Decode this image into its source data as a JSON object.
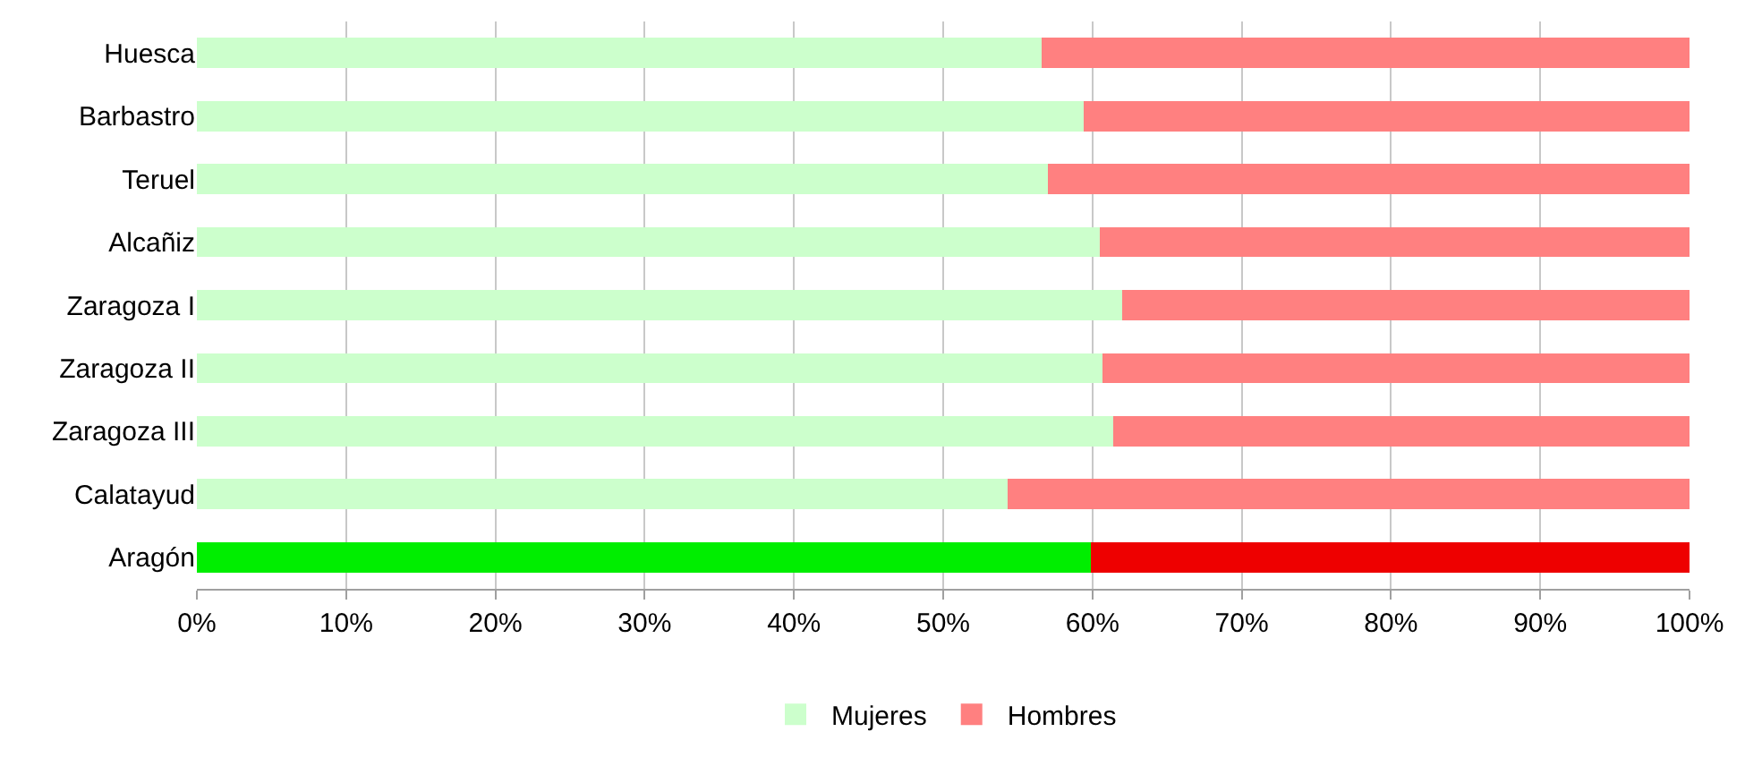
{
  "chart_data": {
    "type": "bar",
    "orientation": "horizontal",
    "stacked": true,
    "categories": [
      "Huesca",
      "Barbastro",
      "Teruel",
      "Alcañiz",
      "Zaragoza I",
      "Zaragoza II",
      "Zaragoza III",
      "Calatayud",
      "Aragón"
    ],
    "series": [
      {
        "name": "Mujeres",
        "color": "#ccffcc",
        "colors": [
          "#ccffcc",
          "#ccffcc",
          "#ccffcc",
          "#ccffcc",
          "#ccffcc",
          "#ccffcc",
          "#ccffcc",
          "#ccffcc",
          "#00ee00"
        ],
        "values": [
          56.6,
          59.4,
          57.0,
          60.5,
          62.0,
          60.7,
          61.4,
          54.3,
          59.9
        ]
      },
      {
        "name": "Hombres",
        "color": "#ff8080",
        "colors": [
          "#ff8080",
          "#ff8080",
          "#ff8080",
          "#ff8080",
          "#ff8080",
          "#ff8080",
          "#ff8080",
          "#ff8080",
          "#ee0000"
        ],
        "values": [
          43.4,
          40.6,
          43.0,
          39.5,
          38.0,
          39.3,
          38.6,
          45.7,
          40.1
        ]
      }
    ],
    "xlim": [
      0,
      100
    ],
    "xticks": [
      {
        "value": 0,
        "label": "0%"
      },
      {
        "value": 10,
        "label": "10%"
      },
      {
        "value": 20,
        "label": "20%"
      },
      {
        "value": 30,
        "label": "30%"
      },
      {
        "value": 40,
        "label": "40%"
      },
      {
        "value": 50,
        "label": "50%"
      },
      {
        "value": 60,
        "label": "60%"
      },
      {
        "value": 70,
        "label": "70%"
      },
      {
        "value": 80,
        "label": "80%"
      },
      {
        "value": 90,
        "label": "90%"
      },
      {
        "value": 100,
        "label": "100%"
      }
    ],
    "grid": "x",
    "legend": "bottom"
  }
}
